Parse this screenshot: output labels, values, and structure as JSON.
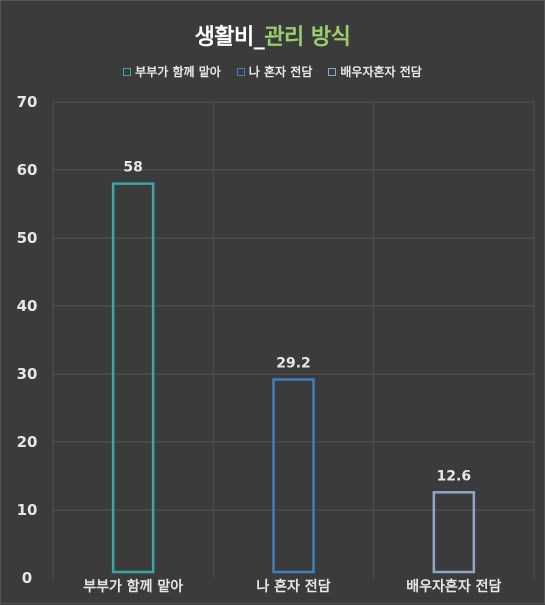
{
  "chart_data": {
    "type": "bar",
    "title_part1": "생활비_",
    "title_part2": "관리 방식",
    "categories": [
      "부부가 함께 맡아",
      "나 혼자 전담",
      "배우자혼자 전담"
    ],
    "values": [
      58,
      29.2,
      12.6
    ],
    "value_labels": [
      "58",
      "29.2",
      "12.6"
    ],
    "legend": [
      "부부가 함께 맡아",
      "나 혼자 전담",
      "배우자혼자 전담"
    ],
    "colors": [
      "#3aa7a9",
      "#3f7fbf",
      "#8fa6c9"
    ],
    "ylim": [
      0,
      70
    ],
    "yticks": [
      0,
      10,
      20,
      30,
      40,
      50,
      60,
      70
    ],
    "grid": true
  }
}
